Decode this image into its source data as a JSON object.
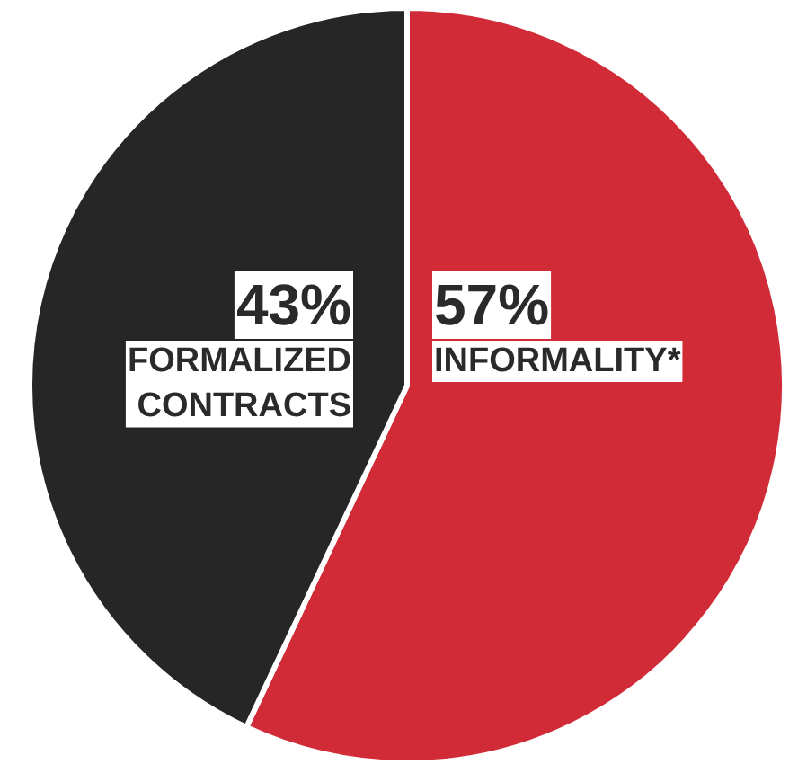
{
  "chart_data": {
    "type": "pie",
    "categories": [
      "INFORMALITY*",
      "FORMALIZED CONTRACTS"
    ],
    "values": [
      57,
      43
    ],
    "colors": [
      "#d12b37",
      "#262626"
    ],
    "value_labels": [
      "57%",
      "43%"
    ]
  }
}
